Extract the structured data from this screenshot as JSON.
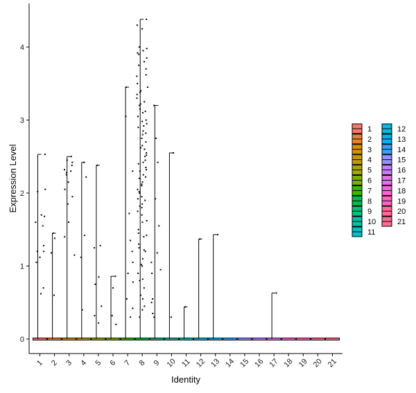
{
  "chart_data": {
    "type": "violin",
    "xlabel": "Identity",
    "ylabel": "Expression Level",
    "ylim": [
      -0.2,
      4.6
    ],
    "yticks": [
      0,
      1,
      2,
      3,
      4
    ],
    "grid": false,
    "legend_placement": "right",
    "categories": [
      "1",
      "2",
      "3",
      "4",
      "5",
      "6",
      "7",
      "8",
      "9",
      "10",
      "11",
      "12",
      "13",
      "14",
      "15",
      "16",
      "17",
      "18",
      "19",
      "20",
      "21"
    ],
    "colors": [
      "#F8766D",
      "#EA8331",
      "#D89000",
      "#C09B00",
      "#A3A500",
      "#7CAE00",
      "#39B600",
      "#00BB4E",
      "#00BF7D",
      "#00C1A3",
      "#00BFC4",
      "#00BAE0",
      "#00B0F6",
      "#35A2FF",
      "#9590FF",
      "#C77CFF",
      "#E76BF3",
      "#FA62DB",
      "#FF62BC",
      "#FF6A98",
      "#FF6C91"
    ],
    "max_values": [
      2.53,
      1.45,
      2.5,
      2.42,
      2.38,
      0.86,
      3.45,
      4.38,
      3.2,
      2.55,
      0.44,
      1.37,
      1.43,
      0,
      0,
      0,
      0.63,
      0,
      0,
      0,
      0
    ],
    "points": [
      [
        1.05,
        1.12,
        1.2,
        1.28,
        1.68,
        1.6,
        1.7,
        2.05,
        2.02,
        2.53,
        0.62,
        0.7,
        1.55,
        1.2
      ],
      [
        1.45,
        1.38,
        1.18,
        0.6
      ],
      [
        2.5,
        2.45,
        2.42,
        2.32,
        2.3,
        2.25,
        2.15,
        2.05,
        1.95,
        1.85,
        1.6,
        1.4,
        1.15,
        2.38,
        2.28
      ],
      [
        2.42,
        2.22,
        1.42,
        1.12,
        0.4
      ],
      [
        2.38,
        1.28,
        1.25,
        0.85,
        0.75,
        0.45,
        0.32,
        0.22
      ],
      [
        0.86,
        0.7,
        0.32,
        0.2
      ],
      [
        3.45,
        3.05,
        2.3,
        1.72,
        1.35,
        1.2,
        1.05,
        0.9,
        0.78,
        0.55,
        0.42,
        0.3
      ],
      [
        4.38,
        4.3,
        4.25,
        4.0,
        3.95,
        3.9,
        3.85,
        3.8,
        3.75,
        3.7,
        3.6,
        3.5,
        3.45,
        3.4,
        3.35,
        3.3,
        3.25,
        3.2,
        3.15,
        3.1,
        3.05,
        3.0,
        2.95,
        2.9,
        2.85,
        2.8,
        2.75,
        2.7,
        2.65,
        2.6,
        2.55,
        2.5,
        2.45,
        2.4,
        2.35,
        2.3,
        2.25,
        2.2,
        2.15,
        2.1,
        2.05,
        2.0,
        1.95,
        1.9,
        1.85,
        1.8,
        1.75,
        1.7,
        1.6,
        1.5,
        1.45,
        1.4,
        1.3,
        1.25,
        1.2,
        1.1,
        1.0,
        0.9,
        0.8,
        0.7,
        0.6,
        0.55,
        0.45,
        0.4,
        0.3,
        3.98,
        3.92,
        3.62,
        3.38,
        3.22,
        3.12,
        2.98,
        2.92,
        2.82,
        2.62,
        2.52,
        2.42,
        2.32,
        2.22,
        2.12,
        2.02,
        1.92,
        1.82,
        1.62,
        1.42,
        1.22,
        1.02,
        0.82
      ],
      [
        3.2,
        2.75,
        2.42,
        1.92,
        1.55,
        1.18,
        1.05,
        0.95,
        0.9,
        0.55,
        0.5,
        0.35,
        0.3
      ],
      [
        2.55,
        0.3
      ],
      [
        0.44
      ],
      [
        1.37
      ],
      [
        1.43
      ],
      [],
      [],
      [],
      [
        0.63
      ],
      [],
      [],
      [],
      []
    ]
  }
}
